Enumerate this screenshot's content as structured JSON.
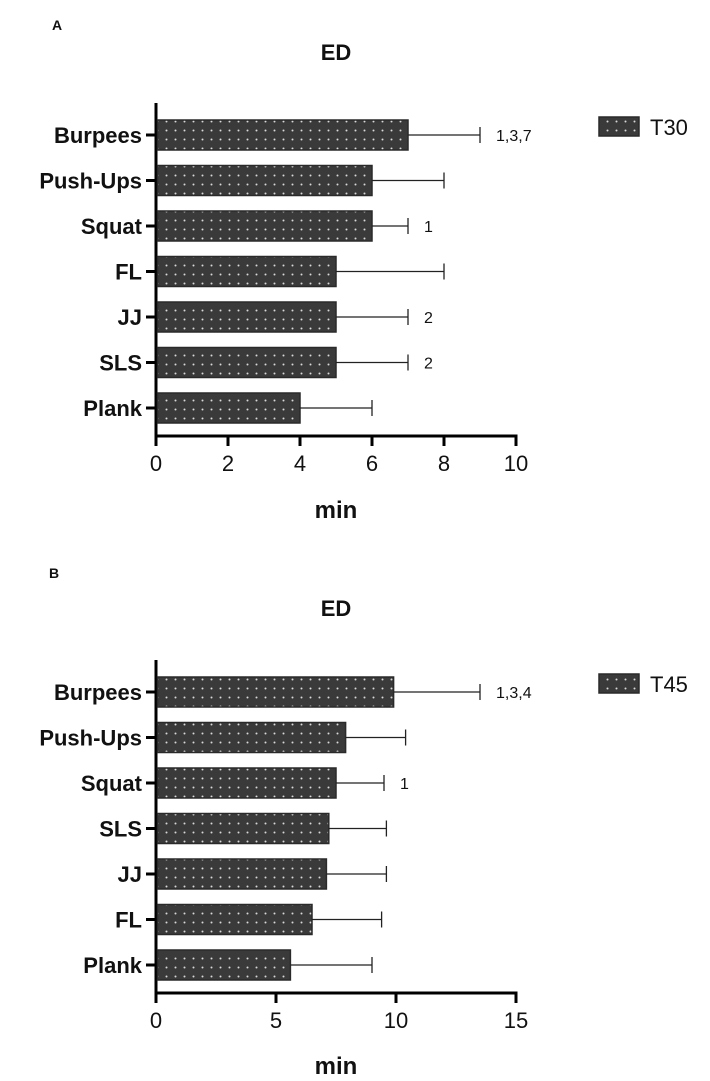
{
  "colors": {
    "bar_fill": "#3a3a3a",
    "bar_dots": "#d9d9d9",
    "axis": "#000000"
  },
  "chart_data": [
    {
      "type": "bar",
      "orientation": "horizontal",
      "panel_label": "A",
      "title": "ED",
      "xlabel": "min",
      "ylabel": "",
      "xlim": [
        0,
        10
      ],
      "xticks": [
        0,
        2,
        4,
        6,
        8,
        10
      ],
      "categories": [
        "Burpees",
        "Push-Ups",
        "Squat",
        "FL",
        "JJ",
        "SLS",
        "Plank"
      ],
      "series": [
        {
          "name": "T30",
          "values": [
            7,
            6,
            6,
            5,
            5,
            5,
            4
          ],
          "error_upper": [
            9,
            8,
            7,
            8,
            7,
            7,
            6
          ]
        }
      ],
      "annotations": [
        "1,3,7",
        "",
        "1",
        "",
        "2",
        "2",
        ""
      ],
      "legend_position": "top-right",
      "grid": false
    },
    {
      "type": "bar",
      "orientation": "horizontal",
      "panel_label": "B",
      "title": "ED",
      "xlabel": "min",
      "ylabel": "",
      "xlim": [
        0,
        15
      ],
      "xticks": [
        0,
        5,
        10,
        15
      ],
      "categories": [
        "Burpees",
        "Push-Ups",
        "Squat",
        "SLS",
        "JJ",
        "FL",
        "Plank"
      ],
      "series": [
        {
          "name": "T45",
          "values": [
            9.9,
            7.9,
            7.5,
            7.2,
            7.1,
            6.5,
            5.6
          ],
          "error_upper": [
            13.5,
            10.4,
            9.5,
            9.6,
            9.6,
            9.4,
            9.0
          ]
        }
      ],
      "annotations": [
        "1,3,4",
        "",
        "1",
        "",
        "",
        "",
        ""
      ],
      "legend_position": "top-right",
      "grid": false
    }
  ]
}
